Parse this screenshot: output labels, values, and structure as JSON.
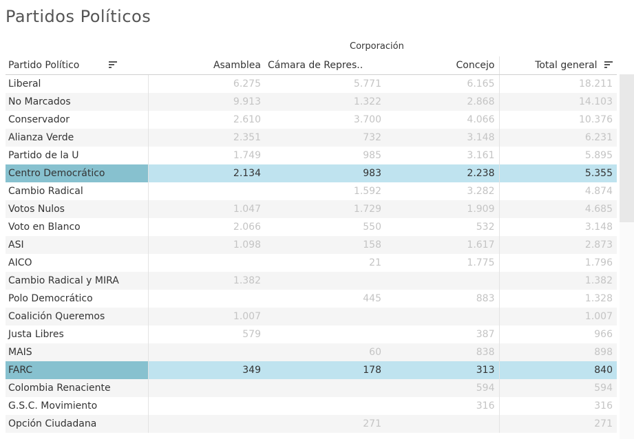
{
  "title": "Partidos Políticos",
  "column_group_label": "Corporación",
  "headers": {
    "partido": "Partido Político",
    "asamblea": "Asamblea",
    "camara": "Cámara de Repres..",
    "concejo": "Concejo",
    "total": "Total general"
  },
  "icons": {
    "sort": "sort-descending-icon"
  },
  "colors": {
    "highlight_row": "#bfe3ef",
    "highlight_name": "#87c1cf",
    "muted_value": "#c4c4c4"
  },
  "rows": [
    {
      "name": "Liberal",
      "asamblea": "6.275",
      "camara": "5.771",
      "concejo": "6.165",
      "total": "18.211",
      "highlighted": false
    },
    {
      "name": "No Marcados",
      "asamblea": "9.913",
      "camara": "1.322",
      "concejo": "2.868",
      "total": "14.103",
      "highlighted": false
    },
    {
      "name": "Conservador",
      "asamblea": "2.610",
      "camara": "3.700",
      "concejo": "4.066",
      "total": "10.376",
      "highlighted": false
    },
    {
      "name": "Alianza Verde",
      "asamblea": "2.351",
      "camara": "732",
      "concejo": "3.148",
      "total": "6.231",
      "highlighted": false
    },
    {
      "name": "Partido de la U",
      "asamblea": "1.749",
      "camara": "985",
      "concejo": "3.161",
      "total": "5.895",
      "highlighted": false
    },
    {
      "name": "Centro Democrático",
      "asamblea": "2.134",
      "camara": "983",
      "concejo": "2.238",
      "total": "5.355",
      "highlighted": true
    },
    {
      "name": "Cambio Radical",
      "asamblea": "",
      "camara": "1.592",
      "concejo": "3.282",
      "total": "4.874",
      "highlighted": false
    },
    {
      "name": "Votos Nulos",
      "asamblea": "1.047",
      "camara": "1.729",
      "concejo": "1.909",
      "total": "4.685",
      "highlighted": false
    },
    {
      "name": "Voto en Blanco",
      "asamblea": "2.066",
      "camara": "550",
      "concejo": "532",
      "total": "3.148",
      "highlighted": false
    },
    {
      "name": "ASI",
      "asamblea": "1.098",
      "camara": "158",
      "concejo": "1.617",
      "total": "2.873",
      "highlighted": false
    },
    {
      "name": "AICO",
      "asamblea": "",
      "camara": "21",
      "concejo": "1.775",
      "total": "1.796",
      "highlighted": false
    },
    {
      "name": "Cambio Radical y MIRA",
      "asamblea": "1.382",
      "camara": "",
      "concejo": "",
      "total": "1.382",
      "highlighted": false
    },
    {
      "name": "Polo Democrático",
      "asamblea": "",
      "camara": "445",
      "concejo": "883",
      "total": "1.328",
      "highlighted": false
    },
    {
      "name": "Coalición Queremos",
      "asamblea": "1.007",
      "camara": "",
      "concejo": "",
      "total": "1.007",
      "highlighted": false
    },
    {
      "name": "Justa Libres",
      "asamblea": "579",
      "camara": "",
      "concejo": "387",
      "total": "966",
      "highlighted": false
    },
    {
      "name": "MAIS",
      "asamblea": "",
      "camara": "60",
      "concejo": "838",
      "total": "898",
      "highlighted": false
    },
    {
      "name": "FARC",
      "asamblea": "349",
      "camara": "178",
      "concejo": "313",
      "total": "840",
      "highlighted": true
    },
    {
      "name": "Colombia Renaciente",
      "asamblea": "",
      "camara": "",
      "concejo": "594",
      "total": "594",
      "highlighted": false
    },
    {
      "name": "G.S.C. Movimiento",
      "asamblea": "",
      "camara": "",
      "concejo": "316",
      "total": "316",
      "highlighted": false
    },
    {
      "name": "Opción Ciudadana",
      "asamblea": "",
      "camara": "271",
      "concejo": "",
      "total": "271",
      "highlighted": false
    }
  ]
}
